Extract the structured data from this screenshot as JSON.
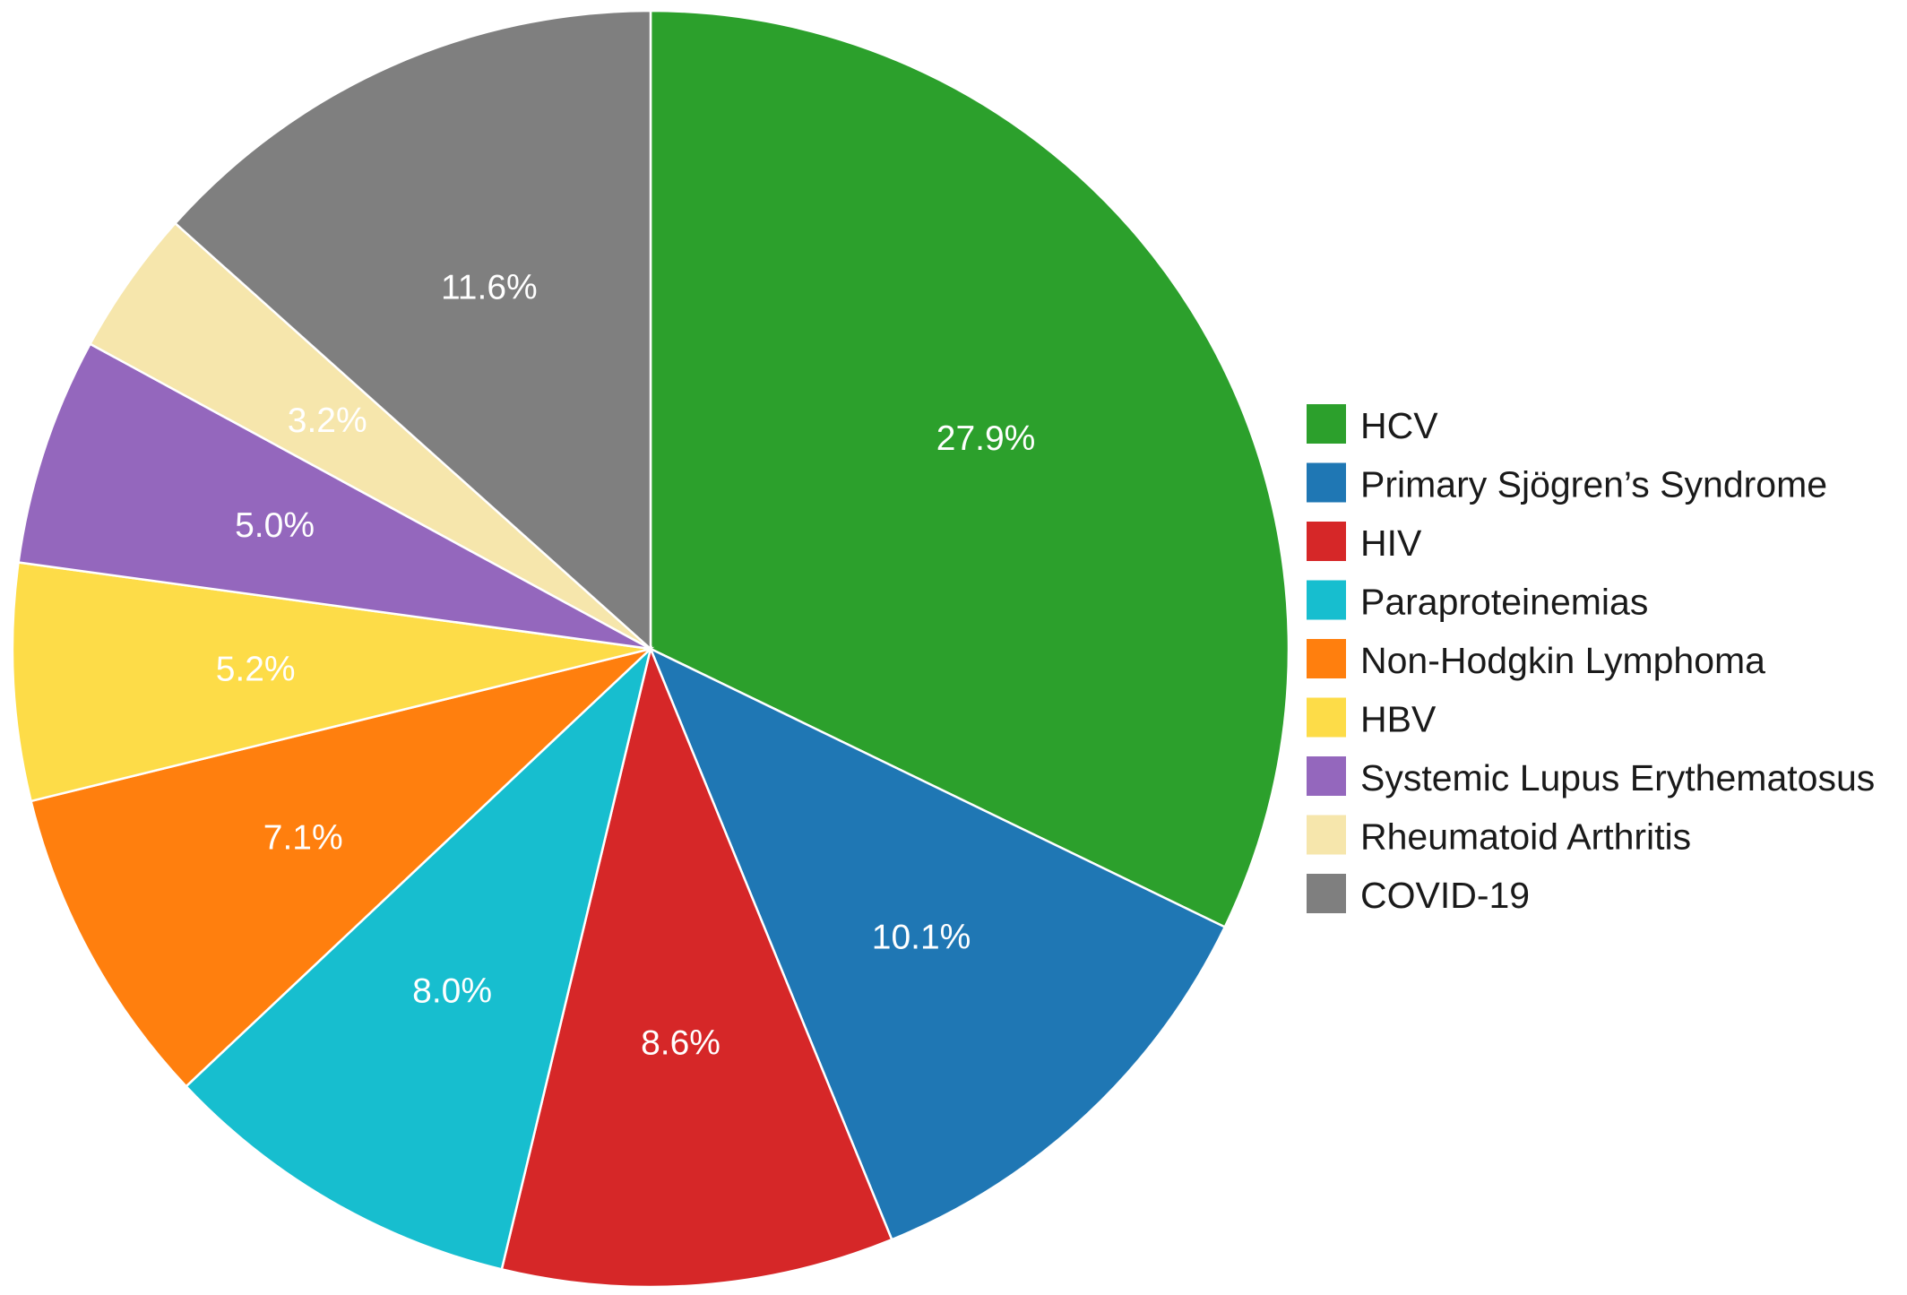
{
  "chart_data": {
    "type": "pie",
    "title": "",
    "legend_position": "right",
    "start_angle": "12 o'clock",
    "direction": "clockwise",
    "slices": [
      {
        "name": "HCV",
        "value": 27.9,
        "label": "27.9%",
        "color": "#2ca02c"
      },
      {
        "name": "Primary Sjögren’s Syndrome",
        "value": 10.1,
        "label": "10.1%",
        "color": "#1f77b4"
      },
      {
        "name": "HIV",
        "value": 8.6,
        "label": "8.6%",
        "color": "#d62728"
      },
      {
        "name": "Paraproteinemias",
        "value": 8.0,
        "label": "8.0%",
        "color": "#17becf"
      },
      {
        "name": "Non-Hodgkin Lymphoma",
        "value": 7.1,
        "label": "7.1%",
        "color": "#ff7f0e"
      },
      {
        "name": "HBV",
        "value": 5.2,
        "label": "5.2%",
        "color": "#fddc48"
      },
      {
        "name": "Systemic Lupus Erythematosus",
        "value": 5.0,
        "label": "5.0%",
        "color": "#9467bd"
      },
      {
        "name": "Rheumatoid Arthritis",
        "value": 3.2,
        "label": "3.2%",
        "color": "#f6e6ac"
      },
      {
        "name": "COVID-19",
        "value": 11.6,
        "label": "11.6%",
        "color": "#7f7f7f"
      }
    ]
  }
}
